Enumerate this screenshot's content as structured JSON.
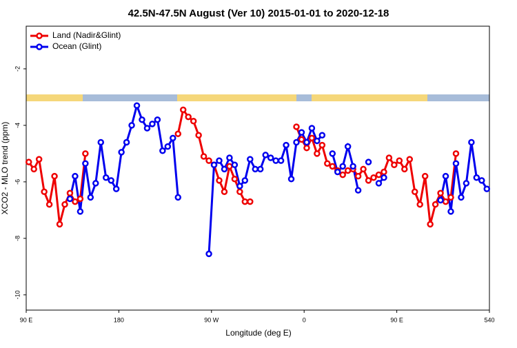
{
  "chart_data": {
    "type": "line",
    "title": "42.5N-47.5N August (Ver 10)   2015-01-01 to 2020-12-18",
    "x_label": "Longitude (deg E)",
    "y_label": "XCO2 - MLO trend (ppm)",
    "x": [
      92.5,
      97.5,
      102.5,
      107.5,
      112.5,
      117.5,
      122.5,
      127.5,
      132.5,
      137.5,
      142.5,
      147.5,
      152.5,
      157.5,
      162.5,
      167.5,
      172.5,
      177.5,
      182.5,
      187.5,
      192.5,
      197.5,
      202.5,
      207.5,
      212.5,
      217.5,
      222.5,
      227.5,
      232.5,
      237.5,
      242.5,
      247.5,
      252.5,
      257.5,
      262.5,
      267.5,
      272.5,
      277.5,
      282.5,
      287.5,
      292.5,
      297.5,
      302.5,
      307.5,
      312.5,
      317.5,
      322.5,
      327.5,
      332.5,
      337.5,
      342.5,
      347.5,
      352.5,
      357.5,
      362.5,
      367.5,
      372.5,
      377.5,
      382.5,
      387.5,
      392.5,
      397.5,
      402.5,
      407.5,
      412.5,
      417.5,
      422.5,
      427.5,
      432.5,
      437.5,
      442.5,
      447.5,
      452.5,
      457.5,
      462.5,
      467.5,
      472.5,
      477.5,
      482.5,
      487.5,
      492.5,
      497.5,
      502.5,
      507.5,
      512.5,
      517.5,
      522.5,
      527.5,
      532.5,
      537.5
    ],
    "series": [
      {
        "name": "Land (Nadir&Glint)",
        "color": "#ee0000",
        "values": [
          -5.3,
          -5.55,
          -5.2,
          -6.35,
          -6.8,
          -5.8,
          -7.5,
          -6.8,
          -6.4,
          -6.7,
          -6.6,
          -5.0,
          null,
          null,
          null,
          null,
          null,
          null,
          null,
          null,
          null,
          null,
          null,
          null,
          null,
          null,
          null,
          null,
          null,
          -4.3,
          -3.45,
          -3.7,
          -3.85,
          -4.35,
          -5.1,
          -5.25,
          -5.4,
          -5.95,
          -6.35,
          -5.45,
          -5.9,
          -6.35,
          -6.7,
          -6.7,
          null,
          null,
          null,
          null,
          null,
          null,
          null,
          null,
          -4.05,
          -4.5,
          -4.8,
          -4.45,
          -5.0,
          -4.7,
          -5.35,
          -5.45,
          -5.6,
          -5.75,
          -5.6,
          -5.55,
          -5.8,
          -5.55,
          -5.95,
          -5.85,
          -5.75,
          -5.65,
          -5.15,
          -5.4,
          -5.25,
          -5.55,
          -5.2,
          -6.35,
          -6.8,
          -5.8,
          -7.5,
          -6.8,
          -6.4,
          -6.7,
          -6.55,
          -5.0,
          null,
          null,
          null,
          null,
          null,
          null
        ]
      },
      {
        "name": "Ocean (Glint)",
        "color": "#0000ee",
        "values": [
          null,
          null,
          null,
          null,
          null,
          null,
          null,
          null,
          -6.6,
          -5.8,
          -7.05,
          -5.35,
          -6.55,
          -6.05,
          -4.6,
          -5.85,
          -5.95,
          -6.25,
          -4.95,
          -4.6,
          -4.0,
          -3.3,
          -3.8,
          -4.1,
          -3.95,
          -3.8,
          -4.9,
          -4.75,
          -4.45,
          -6.55,
          null,
          null,
          null,
          null,
          null,
          -8.55,
          -5.4,
          -5.25,
          -5.55,
          -5.15,
          -5.4,
          -6.15,
          -5.95,
          -5.2,
          -5.55,
          -5.55,
          -5.05,
          -5.15,
          -5.25,
          -5.25,
          -4.7,
          -5.9,
          -4.6,
          -4.25,
          -4.6,
          -4.1,
          -4.55,
          -4.35,
          null,
          -5.0,
          -5.65,
          -5.45,
          -4.75,
          -5.45,
          -6.3,
          null,
          -5.3,
          null,
          -6.05,
          -5.85,
          null,
          null,
          null,
          null,
          null,
          null,
          null,
          null,
          null,
          null,
          -6.65,
          -5.8,
          -7.05,
          -5.35,
          -6.55,
          -6.05,
          -4.6,
          -5.85,
          -5.95,
          -6.25
        ]
      }
    ],
    "xlim": [
      90,
      540
    ],
    "xticks": [
      {
        "value": 90,
        "label": "90 E"
      },
      180,
      {
        "value": 270,
        "label": "90 W"
      },
      {
        "value": 360,
        "label": "0"
      },
      {
        "value": 450,
        "label": "90 E"
      },
      540
    ],
    "ylim": [
      -10.54,
      -0.49
    ],
    "yticks": [
      -2,
      -4,
      -6,
      -8,
      -10
    ],
    "legend": "top-left"
  }
}
